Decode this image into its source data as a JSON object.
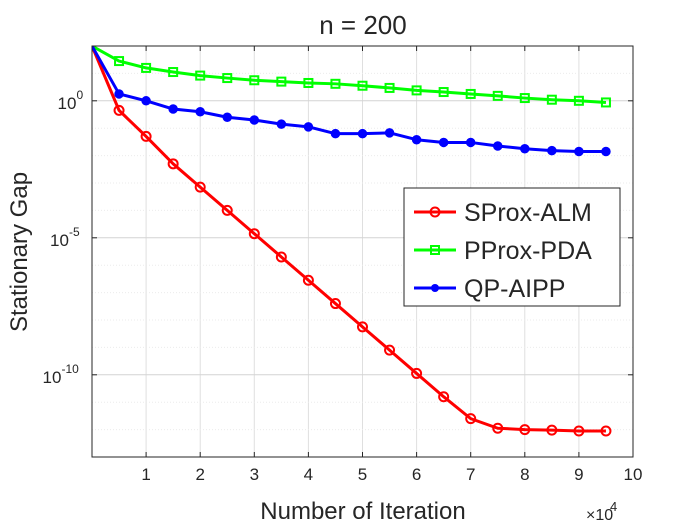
{
  "chart_data": {
    "type": "line",
    "title": "n = 200",
    "xlabel": "Number of Iteration",
    "ylabel": "Stationary Gap",
    "x_multiplier": "×10",
    "x_multiplier_exp": "4",
    "xscale": "linear",
    "yscale": "log",
    "xlim": [
      0,
      10
    ],
    "ylim_log10": [
      -13,
      2
    ],
    "grid": true,
    "legend_position": "center-right",
    "x_ticks": [
      {
        "value": 1,
        "label": "1"
      },
      {
        "value": 2,
        "label": "2"
      },
      {
        "value": 3,
        "label": "3"
      },
      {
        "value": 4,
        "label": "4"
      },
      {
        "value": 5,
        "label": "5"
      },
      {
        "value": 6,
        "label": "6"
      },
      {
        "value": 7,
        "label": "7"
      },
      {
        "value": 8,
        "label": "8"
      },
      {
        "value": 9,
        "label": "9"
      },
      {
        "value": 10,
        "label": "10"
      }
    ],
    "y_ticks": [
      {
        "log10": 0,
        "base": "10",
        "exp": "0"
      },
      {
        "log10": -5,
        "base": "10",
        "exp": "-5"
      },
      {
        "log10": -10,
        "base": "10",
        "exp": "-10"
      }
    ],
    "series": [
      {
        "name": "SProx-ALM",
        "color": "#ff0000",
        "marker": "circle",
        "x": [
          0,
          0.5,
          1.0,
          1.5,
          2.0,
          2.5,
          3.0,
          3.5,
          4.0,
          4.5,
          5.0,
          5.5,
          6.0,
          6.5,
          7.0,
          7.5,
          8.0,
          8.5,
          9.0,
          9.5
        ],
        "log10_y": [
          2.0,
          -0.35,
          -1.3,
          -2.3,
          -3.15,
          -4.0,
          -4.85,
          -5.7,
          -6.55,
          -7.4,
          -8.25,
          -9.1,
          -9.95,
          -10.8,
          -11.6,
          -11.95,
          -12.0,
          -12.02,
          -12.05,
          -12.05
        ]
      },
      {
        "name": "PProx-PDA",
        "color": "#00ff00",
        "marker": "square",
        "x": [
          0,
          0.5,
          1.0,
          1.5,
          2.0,
          2.5,
          3.0,
          3.5,
          4.0,
          4.5,
          5.0,
          5.5,
          6.0,
          6.5,
          7.0,
          7.5,
          8.0,
          8.5,
          9.0,
          9.5
        ],
        "log10_y": [
          2.0,
          1.45,
          1.2,
          1.05,
          0.92,
          0.83,
          0.75,
          0.7,
          0.65,
          0.62,
          0.55,
          0.47,
          0.38,
          0.32,
          0.25,
          0.18,
          0.1,
          0.04,
          0.0,
          -0.06
        ]
      },
      {
        "name": "QP-AIPP",
        "color": "#0000ff",
        "marker": "circle-filled",
        "x": [
          0,
          0.5,
          1.0,
          1.5,
          2.0,
          2.5,
          3.0,
          3.5,
          4.0,
          4.5,
          5.0,
          5.5,
          6.0,
          6.5,
          7.0,
          7.5,
          8.0,
          8.5,
          9.0,
          9.5
        ],
        "log10_y": [
          2.0,
          0.25,
          0.0,
          -0.3,
          -0.4,
          -0.6,
          -0.7,
          -0.85,
          -0.95,
          -1.2,
          -1.2,
          -1.17,
          -1.42,
          -1.52,
          -1.52,
          -1.65,
          -1.75,
          -1.82,
          -1.85,
          -1.85
        ]
      }
    ]
  }
}
